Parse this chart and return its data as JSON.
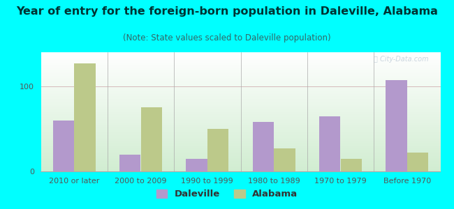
{
  "title": "Year of entry for the foreign-born population in Daleville, Alabama",
  "subtitle": "(Note: State values scaled to Daleville population)",
  "categories": [
    "2010 or later",
    "2000 to 2009",
    "1990 to 1999",
    "1980 to 1989",
    "1970 to 1979",
    "Before 1970"
  ],
  "daleville_values": [
    60,
    20,
    15,
    58,
    65,
    107
  ],
  "alabama_values": [
    127,
    75,
    50,
    27,
    15,
    22
  ],
  "daleville_color": "#b399cc",
  "alabama_color": "#bcc98a",
  "background_color": "#00ffff",
  "ylim": [
    0,
    140
  ],
  "yticks": [
    0,
    100
  ],
  "bar_width": 0.32,
  "title_fontsize": 11.5,
  "subtitle_fontsize": 8.5,
  "legend_fontsize": 9.5,
  "tick_fontsize": 8,
  "watermark": "Ⓣ City-Data.com"
}
